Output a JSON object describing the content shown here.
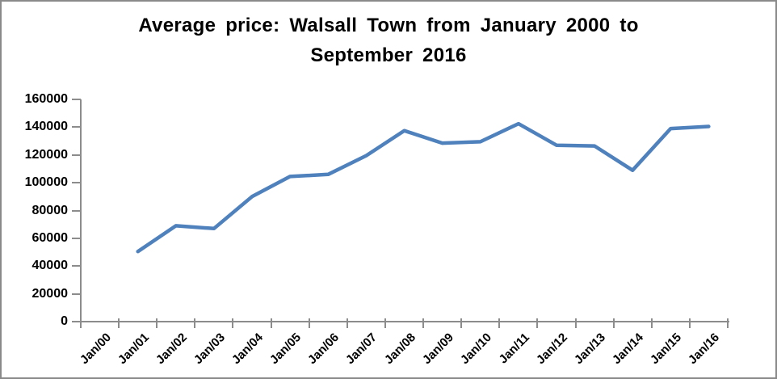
{
  "header": {
    "title_line1": "Average price: Walsall Town from January 2000 to",
    "title_line2": "September 2016"
  },
  "chart_data": {
    "type": "line",
    "title": "Average price: Walsall Town from January 2000 to September 2016",
    "categories": [
      "Jan/00",
      "Jan/01",
      "Jan/02",
      "Jan/03",
      "Jan/04",
      "Jan/05",
      "Jan/06",
      "Jan/07",
      "Jan/08",
      "Jan/09",
      "Jan/10",
      "Jan/11",
      "Jan/12",
      "Jan/13",
      "Jan/14",
      "Jan/15",
      "Jan/16"
    ],
    "series": [
      {
        "name": "Average price",
        "color": "#4F81BD",
        "values": [
          null,
          50500,
          69000,
          67000,
          90000,
          104500,
          106000,
          119500,
          137500,
          128500,
          129500,
          142500,
          127000,
          126500,
          109000,
          139000,
          140500
        ]
      }
    ],
    "xlabel": "",
    "ylabel": "",
    "ylim": [
      0,
      160000
    ],
    "yticks": [
      0,
      20000,
      40000,
      60000,
      80000,
      100000,
      120000,
      140000,
      160000
    ],
    "grid": false,
    "legend": "none",
    "axis_color": "#8c8c8c",
    "text_color": "#000000",
    "frame_border_color": "#8a8a8a",
    "background_color": "#ffffff"
  }
}
